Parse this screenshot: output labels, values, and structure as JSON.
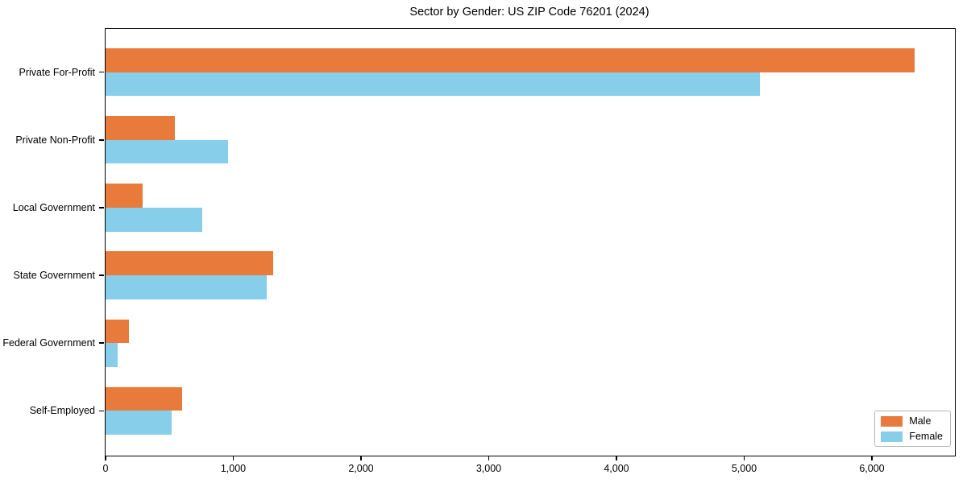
{
  "title": "Sector by Gender: US ZIP Code 76201 (2024)",
  "colors": {
    "male": "#E87A3C",
    "female": "#87CEEB",
    "axis": "#000000",
    "background": "#ffffff",
    "legend_border": "#b4b4b4"
  },
  "legend": {
    "position": "lower right",
    "items": [
      {
        "label": "Male",
        "color": "#E87A3C"
      },
      {
        "label": "Female",
        "color": "#87CEEB"
      }
    ]
  },
  "chart_data": {
    "type": "bar",
    "orientation": "horizontal",
    "title": "Sector by Gender: US ZIP Code 76201 (2024)",
    "categories": [
      "Private For-Profit",
      "Private Non-Profit",
      "Local Government",
      "State Government",
      "Federal Government",
      "Self-Employed"
    ],
    "series": [
      {
        "name": "Male",
        "color": "#E87A3C",
        "values": [
          6335,
          545,
          290,
          1315,
          185,
          600
        ]
      },
      {
        "name": "Female",
        "color": "#87CEEB",
        "values": [
          5120,
          960,
          760,
          1260,
          95,
          520
        ]
      }
    ],
    "xlabel": "",
    "ylabel": "",
    "xlim": [
      0,
      6650
    ],
    "xticks": [
      0,
      1000,
      2000,
      3000,
      4000,
      5000,
      6000
    ],
    "xtick_labels": [
      "0",
      "1,000",
      "2,000",
      "3,000",
      "4,000",
      "5,000",
      "6,000"
    ],
    "grid": false,
    "legend_position": "lower right"
  }
}
